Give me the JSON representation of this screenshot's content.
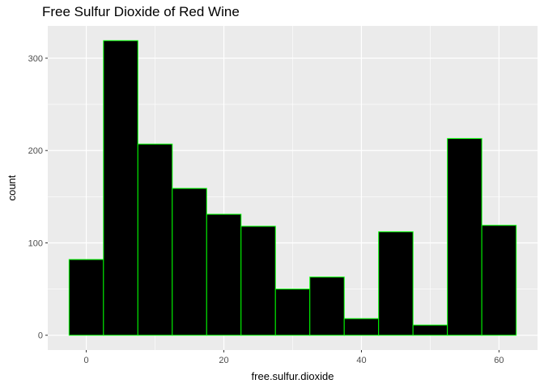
{
  "chart_data": {
    "type": "bar",
    "title": "Free Sulfur Dioxide of Red Wine",
    "xlabel": "free.sulfur.dioxide",
    "ylabel": "count",
    "bin_width": 5,
    "bins": [
      {
        "x0": -2.5,
        "x1": 2.5,
        "count": 82
      },
      {
        "x0": 2.5,
        "x1": 7.5,
        "count": 319
      },
      {
        "x0": 7.5,
        "x1": 12.5,
        "count": 207
      },
      {
        "x0": 12.5,
        "x1": 17.5,
        "count": 159
      },
      {
        "x0": 17.5,
        "x1": 22.5,
        "count": 131
      },
      {
        "x0": 22.5,
        "x1": 27.5,
        "count": 118
      },
      {
        "x0": 27.5,
        "x1": 32.5,
        "count": 50
      },
      {
        "x0": 32.5,
        "x1": 37.5,
        "count": 63
      },
      {
        "x0": 37.5,
        "x1": 42.5,
        "count": 18
      },
      {
        "x0": 42.5,
        "x1": 47.5,
        "count": 112
      },
      {
        "x0": 47.5,
        "x1": 52.5,
        "count": 11
      },
      {
        "x0": 52.5,
        "x1": 57.5,
        "count": 213
      },
      {
        "x0": 57.5,
        "x1": 62.5,
        "count": 119
      }
    ],
    "xlim": [
      -5.6,
      65.6
    ],
    "ylim": [
      -16,
      335
    ],
    "x_ticks": [
      0,
      20,
      40,
      60
    ],
    "x_minor": [
      10,
      30,
      50
    ],
    "y_ticks": [
      0,
      100,
      200,
      300
    ],
    "y_minor": [
      50,
      150,
      250
    ],
    "grid": true,
    "colors": {
      "panel_background": "#ebebeb",
      "grid_line": "#ffffff",
      "bar_fill": "#000000",
      "bar_outline": "#00ff00",
      "tick_color": "#333333"
    }
  }
}
